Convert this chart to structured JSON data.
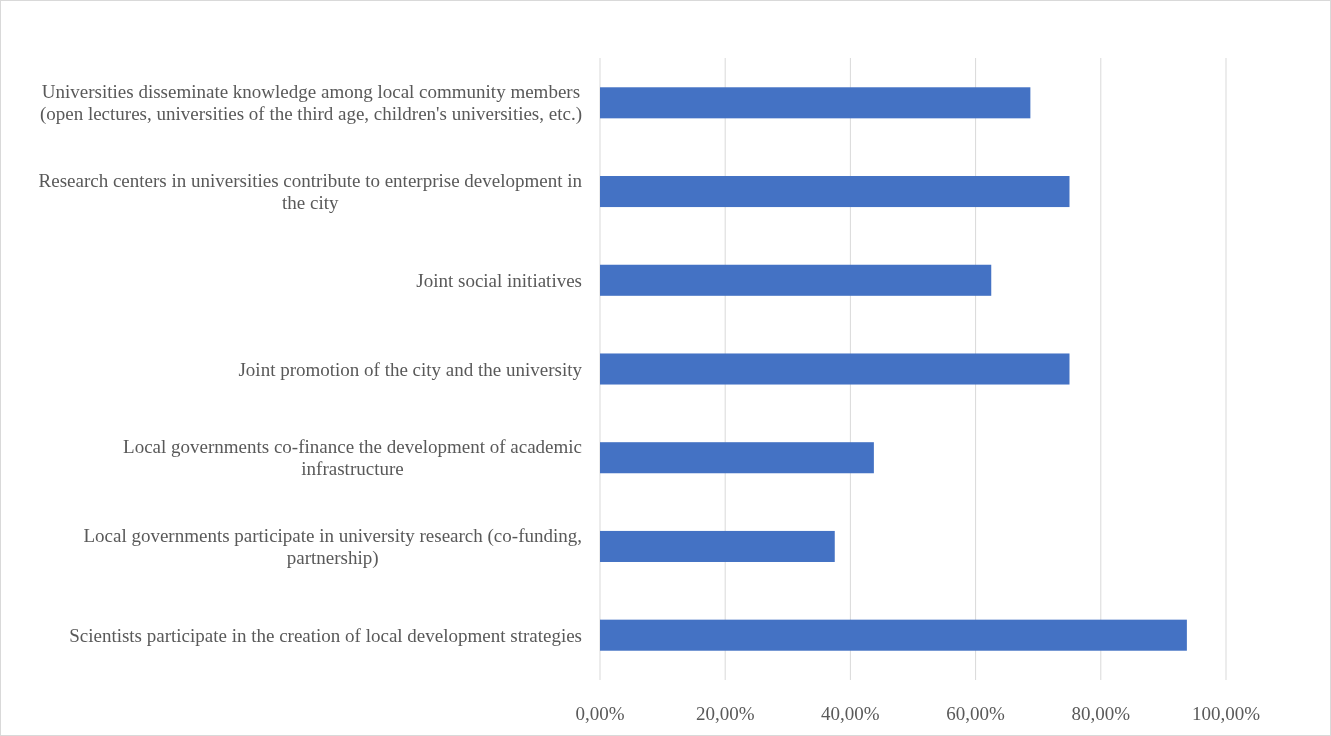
{
  "chart_data": {
    "type": "bar",
    "orientation": "horizontal",
    "categories": [
      "Universities disseminate knowledge among local community members (open lectures, universities of the third age, children's universities, etc.)",
      "Research centers in universities contribute to enterprise development in the city",
      "Joint social initiatives",
      "Joint promotion of the city and the university",
      "Local governments co-finance the development of academic infrastructure",
      "Local governments participate in university research (co-funding, partnership)",
      "Scientists participate in the creation of local development strategies"
    ],
    "values": [
      68.75,
      75,
      62.5,
      75,
      43.75,
      37.5,
      93.75
    ],
    "color": "#4472c4",
    "xlim": [
      0,
      100
    ],
    "xticks": [
      {
        "value": 0,
        "label": "0,00%"
      },
      {
        "value": 20,
        "label": "20,00%"
      },
      {
        "value": 40,
        "label": "40,00%"
      },
      {
        "value": 60,
        "label": "60,00%"
      },
      {
        "value": 80,
        "label": "80,00%"
      },
      {
        "value": 100,
        "label": "100,00%"
      }
    ],
    "grid": "x"
  }
}
